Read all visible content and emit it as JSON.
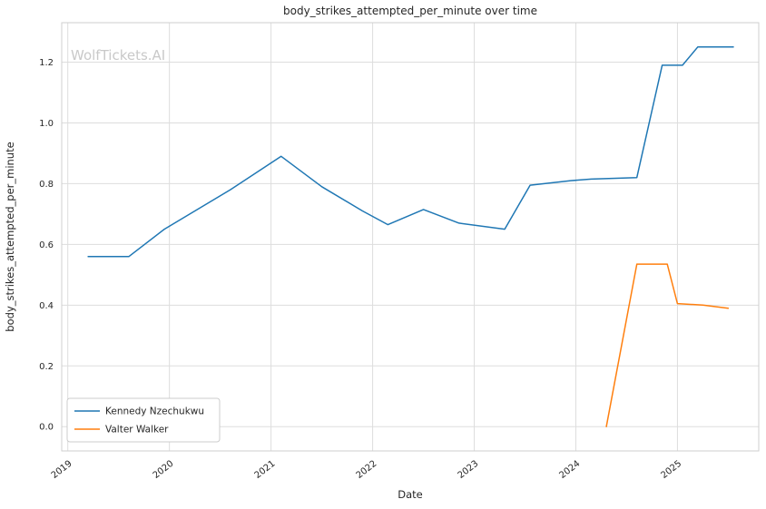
{
  "watermark": "WolfTickets.AI",
  "chart_data": {
    "type": "line",
    "title": "body_strikes_attempted_per_minute over time",
    "xlabel": "Date",
    "ylabel": "body_strikes_attempted_per_minute",
    "xlim": [
      2018.94,
      2025.8
    ],
    "ylim": [
      -0.08,
      1.33
    ],
    "grid": true,
    "legend_position": "lower-left",
    "x_ticks": [
      {
        "value": 2019,
        "label": "2019"
      },
      {
        "value": 2020,
        "label": "2020"
      },
      {
        "value": 2021,
        "label": "2021"
      },
      {
        "value": 2022,
        "label": "2022"
      },
      {
        "value": 2023,
        "label": "2023"
      },
      {
        "value": 2024,
        "label": "2024"
      },
      {
        "value": 2025,
        "label": "2025"
      }
    ],
    "y_ticks": [
      {
        "value": 0.0,
        "label": "0.0"
      },
      {
        "value": 0.2,
        "label": "0.2"
      },
      {
        "value": 0.4,
        "label": "0.4"
      },
      {
        "value": 0.6,
        "label": "0.6"
      },
      {
        "value": 0.8,
        "label": "0.8"
      },
      {
        "value": 1.0,
        "label": "1.0"
      },
      {
        "value": 1.2,
        "label": "1.2"
      }
    ],
    "series": [
      {
        "name": "Kennedy Nzechukwu",
        "color": "#1f77b4",
        "x": [
          2019.2,
          2019.6,
          2019.95,
          2020.6,
          2021.1,
          2021.5,
          2021.9,
          2022.15,
          2022.5,
          2022.85,
          2023.3,
          2023.55,
          2023.95,
          2024.15,
          2024.6,
          2024.85,
          2025.05,
          2025.2,
          2025.55
        ],
        "y": [
          0.56,
          0.56,
          0.65,
          0.78,
          0.89,
          0.79,
          0.71,
          0.665,
          0.715,
          0.67,
          0.65,
          0.795,
          0.81,
          0.815,
          0.82,
          1.19,
          1.19,
          1.25,
          1.25
        ]
      },
      {
        "name": "Valter Walker",
        "color": "#ff7f0e",
        "x": [
          2024.3,
          2024.6,
          2024.9,
          2025.0,
          2025.25,
          2025.5
        ],
        "y": [
          0.0,
          0.535,
          0.535,
          0.405,
          0.4,
          0.39
        ]
      }
    ]
  }
}
